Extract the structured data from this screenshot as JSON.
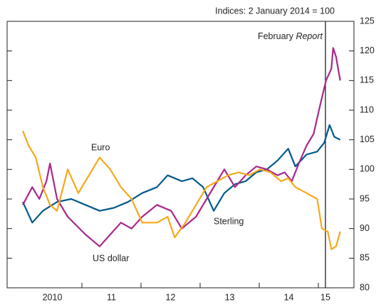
{
  "chart_data": {
    "type": "line",
    "subtitle": "Indices: 2 January 2014 = 100",
    "xlim": [
      2009.735,
      2015.602
    ],
    "ylim": [
      80,
      125
    ],
    "yticks": [
      80,
      85,
      90,
      95,
      100,
      105,
      110,
      115,
      120,
      125
    ],
    "xticks": [
      {
        "value": 2010.5,
        "label": "2010"
      },
      {
        "value": 2011.5,
        "label": "11"
      },
      {
        "value": 2012.5,
        "label": "12"
      },
      {
        "value": 2013.5,
        "label": "13"
      },
      {
        "value": 2014.5,
        "label": "14"
      },
      {
        "value": 2015.12,
        "label": "15"
      }
    ],
    "x_year_boundaries": [
      2011,
      2012,
      2013,
      2014,
      2015
    ],
    "marker_line": {
      "x": 2015.12,
      "text": "February",
      "italic_text": "Report"
    },
    "series": [
      {
        "name": "Sterling",
        "color": "#005a8c",
        "x": [
          2010.0,
          2010.16,
          2010.34,
          2010.58,
          2010.82,
          2011.06,
          2011.3,
          2011.54,
          2011.78,
          2012.02,
          2012.27,
          2012.45,
          2012.69,
          2012.87,
          2013.05,
          2013.23,
          2013.41,
          2013.59,
          2013.77,
          2013.95,
          2014.13,
          2014.31,
          2014.49,
          2014.61,
          2014.8,
          2014.98,
          2015.1,
          2015.19,
          2015.27,
          2015.37
        ],
        "values": [
          94.5,
          91,
          93,
          94.5,
          95,
          94,
          93,
          93.5,
          94.5,
          96,
          97,
          99,
          98,
          98.5,
          97,
          93,
          96,
          97.5,
          98,
          99.5,
          100,
          101.5,
          103.5,
          100.5,
          102.5,
          103,
          104.5,
          107.5,
          105.5,
          105
        ]
      },
      {
        "name": "US dollar",
        "color": "#a8288c",
        "x": [
          2010.0,
          2010.16,
          2010.28,
          2010.4,
          2010.46,
          2010.58,
          2010.76,
          2011.06,
          2011.3,
          2011.48,
          2011.66,
          2011.84,
          2012.02,
          2012.27,
          2012.51,
          2012.69,
          2012.81,
          2012.93,
          2013.11,
          2013.29,
          2013.41,
          2013.59,
          2013.77,
          2013.95,
          2014.13,
          2014.31,
          2014.43,
          2014.55,
          2014.67,
          2014.8,
          2014.92,
          2015.01,
          2015.13,
          2015.22,
          2015.25,
          2015.3,
          2015.37
        ],
        "values": [
          94,
          97,
          95,
          98,
          101,
          95,
          92,
          89,
          87,
          89,
          91,
          90,
          92,
          94,
          93,
          90,
          91,
          92,
          95,
          98,
          100,
          97,
          99,
          100.5,
          100,
          99,
          99.5,
          98,
          101,
          104,
          106,
          110,
          115,
          117,
          120.5,
          119,
          115
        ]
      },
      {
        "name": "Euro",
        "color": "#f5a81c",
        "x": [
          2010.0,
          2010.1,
          2010.22,
          2010.34,
          2010.46,
          2010.58,
          2010.76,
          2010.94,
          2011.18,
          2011.3,
          2011.48,
          2011.66,
          2011.84,
          2012.02,
          2012.27,
          2012.45,
          2012.57,
          2012.75,
          2012.93,
          2013.11,
          2013.29,
          2013.47,
          2013.65,
          2013.83,
          2014.01,
          2014.19,
          2014.37,
          2014.49,
          2014.61,
          2014.8,
          2014.98,
          2015.06,
          2015.16,
          2015.22,
          2015.3,
          2015.37
        ],
        "values": [
          106.5,
          104,
          102,
          97,
          94,
          93,
          100,
          96,
          100,
          102,
          100,
          97,
          95,
          91,
          91,
          92,
          88.5,
          91,
          94,
          97,
          98,
          99,
          99.5,
          99,
          100,
          99.5,
          98,
          98.5,
          97,
          96,
          95,
          90,
          89.5,
          86.5,
          87,
          89.5
        ]
      }
    ]
  }
}
